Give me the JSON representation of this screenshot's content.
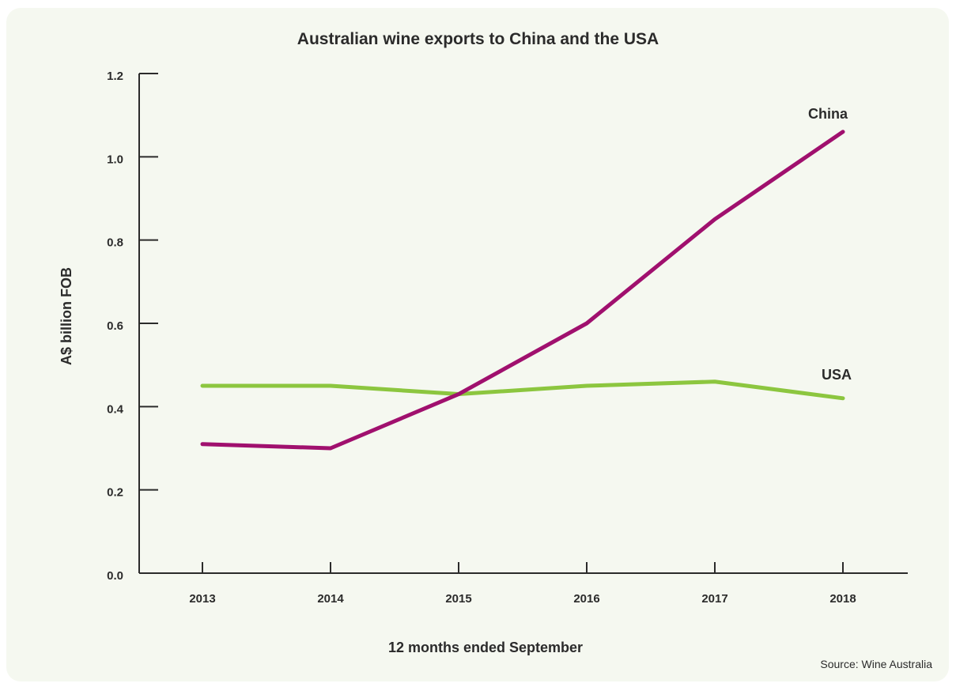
{
  "chart_data": {
    "type": "line",
    "title": "Australian wine exports to China and the USA",
    "xlabel": "12 months ended September",
    "ylabel": "A$ billion FOB",
    "x": [
      "2013",
      "2014",
      "2015",
      "2016",
      "2017",
      "2018"
    ],
    "ylim": [
      0,
      1.2
    ],
    "yticks": [
      "0.0",
      "0.2",
      "0.4",
      "0.6",
      "0.8",
      "1.0",
      "1.2"
    ],
    "grid": false,
    "series": [
      {
        "name": "China",
        "color": "#a0106e",
        "values": [
          0.31,
          0.3,
          0.43,
          0.6,
          0.85,
          1.06
        ]
      },
      {
        "name": "USA",
        "color": "#8cc63f",
        "values": [
          0.45,
          0.45,
          0.43,
          0.45,
          0.46,
          0.42
        ]
      }
    ],
    "source": "Source: Wine Australia"
  }
}
